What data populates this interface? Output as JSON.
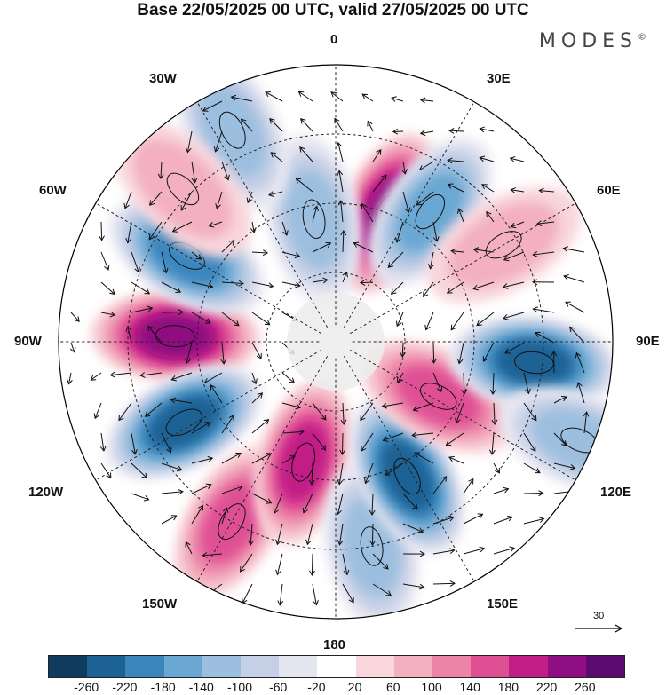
{
  "title": "Base 22/05/2025 00 UTC, valid 27/05/2025 00 UTC",
  "brand": "MODES",
  "brand_mark": "©",
  "longitude_labels": {
    "top": "0",
    "bottom": "180",
    "left": "90W",
    "right": "90E",
    "upper_left_30": "30W",
    "upper_left_60": "60W",
    "upper_right_30": "30E",
    "upper_right_60": "60E",
    "lower_left_120": "120W",
    "lower_left_150": "150W",
    "lower_right_120": "120E",
    "lower_right_150": "150E"
  },
  "reference_vector": {
    "label": "30"
  },
  "colorbar": {
    "colors": [
      "#0f3b5e",
      "#1d6294",
      "#3a86bd",
      "#6aa7d2",
      "#9dbfdf",
      "#c5cfe6",
      "#e6e6f1",
      "#ffffff",
      "#f8d6db",
      "#f3b0c0",
      "#ec84a8",
      "#df4f94",
      "#c21f86",
      "#8f0e81",
      "#5b0b6e"
    ],
    "tick_labels": [
      "-260",
      "-220",
      "-180",
      "-140",
      "-100",
      "-60",
      "-20",
      "20",
      "60",
      "100",
      "140",
      "180",
      "220",
      "260"
    ]
  },
  "anomaly_cells": [
    {
      "lon": -88,
      "r": 0.58,
      "value": 250
    },
    {
      "lon": -60,
      "r": 0.62,
      "value": -200
    },
    {
      "lon": -118,
      "r": 0.62,
      "value": -240
    },
    {
      "lon": -150,
      "r": 0.75,
      "value": 160
    },
    {
      "lon": -165,
      "r": 0.45,
      "value": 180
    },
    {
      "lon": 170,
      "r": 0.75,
      "value": -120
    },
    {
      "lon": 152,
      "r": 0.55,
      "value": -250
    },
    {
      "lon": 118,
      "r": 0.42,
      "value": 150
    },
    {
      "lon": 96,
      "r": 0.72,
      "value": -230
    },
    {
      "lon": 22,
      "r": 0.5,
      "value": 230
    },
    {
      "lon": 36,
      "r": 0.58,
      "value": -150
    },
    {
      "lon": -10,
      "r": 0.45,
      "value": -130
    },
    {
      "lon": -26,
      "r": 0.85,
      "value": -100
    },
    {
      "lon": 60,
      "r": 0.7,
      "value": 60
    },
    {
      "lon": 112,
      "r": 0.95,
      "value": -120
    },
    {
      "lon": -45,
      "r": 0.78,
      "value": 60
    }
  ]
}
